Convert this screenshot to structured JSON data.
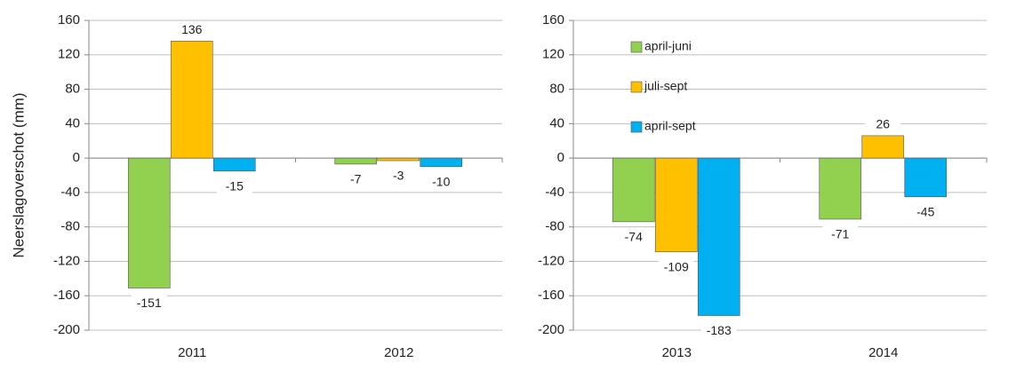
{
  "chart_data": [
    {
      "type": "bar",
      "y_label": "Neerslagoverschot (mm)",
      "categories": [
        "2011",
        "2012"
      ],
      "series": [
        {
          "color": "#92d050",
          "values": [
            -151,
            -7
          ]
        },
        {
          "color": "#ffc000",
          "values": [
            136,
            -3
          ]
        },
        {
          "color": "#00b0f0",
          "values": [
            -15,
            -10
          ]
        }
      ],
      "ylim": [
        -200,
        160
      ],
      "yticks": [
        -200,
        -160,
        -120,
        -80,
        -40,
        0,
        40,
        80,
        120,
        160
      ],
      "grid": true
    },
    {
      "type": "bar",
      "categories": [
        "2013",
        "2014"
      ],
      "series": [
        {
          "name": "april-juni",
          "color": "#92d050",
          "values": [
            -74,
            -71
          ]
        },
        {
          "name": "juli-sept",
          "color": "#ffc000",
          "values": [
            -109,
            26
          ]
        },
        {
          "name": "april-sept",
          "color": "#00b0f0",
          "values": [
            -183,
            -45
          ]
        }
      ],
      "ylim": [
        -200,
        160
      ],
      "yticks": [
        -200,
        -160,
        -120,
        -80,
        -40,
        0,
        40,
        80,
        120,
        160
      ],
      "grid": true,
      "legend": "upper left"
    }
  ]
}
